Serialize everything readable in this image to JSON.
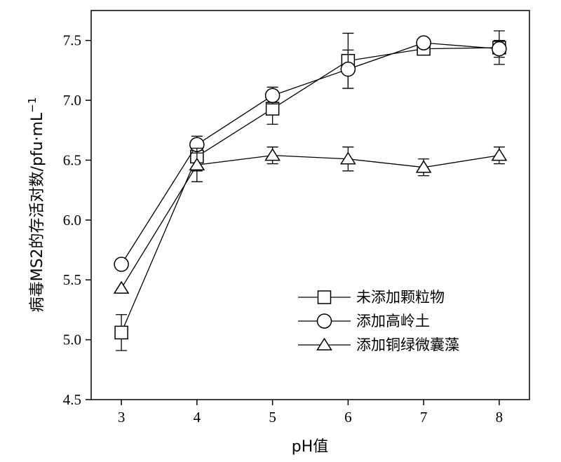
{
  "chart_data": {
    "type": "line",
    "x": [
      3,
      4,
      5,
      6,
      7,
      8
    ],
    "xlabel": "pH值",
    "ylabel": "病毒MS2的存活对数/pfu·mL",
    "ylabel_sup": "−1",
    "xlim": [
      2.6,
      8.4
    ],
    "ylim": [
      4.5,
      7.75
    ],
    "xticks": [
      "3",
      "4",
      "5",
      "6",
      "7",
      "8"
    ],
    "yticks": [
      "4.5",
      "5.0",
      "5.5",
      "6.0",
      "6.5",
      "7.0",
      "7.5"
    ],
    "legend_position": "bottom-right",
    "series": [
      {
        "name": "未添加颗粒物",
        "marker": "square",
        "values": [
          5.06,
          6.53,
          6.93,
          7.33,
          7.43,
          7.44
        ],
        "errors": [
          0.15,
          0.12,
          0.13,
          0.23,
          0.05,
          0.14
        ]
      },
      {
        "name": "添加高岭土",
        "marker": "circle",
        "values": [
          5.63,
          6.63,
          7.04,
          7.26,
          7.48,
          7.43
        ],
        "errors": [
          0.03,
          0.07,
          0.07,
          0.16,
          0.03,
          0.07
        ]
      },
      {
        "name": "添加铜绿微囊藻",
        "marker": "triangle",
        "values": [
          5.43,
          6.46,
          6.54,
          6.51,
          6.44,
          6.54
        ],
        "errors": [
          0.0,
          0.14,
          0.07,
          0.1,
          0.07,
          0.07
        ]
      }
    ]
  }
}
